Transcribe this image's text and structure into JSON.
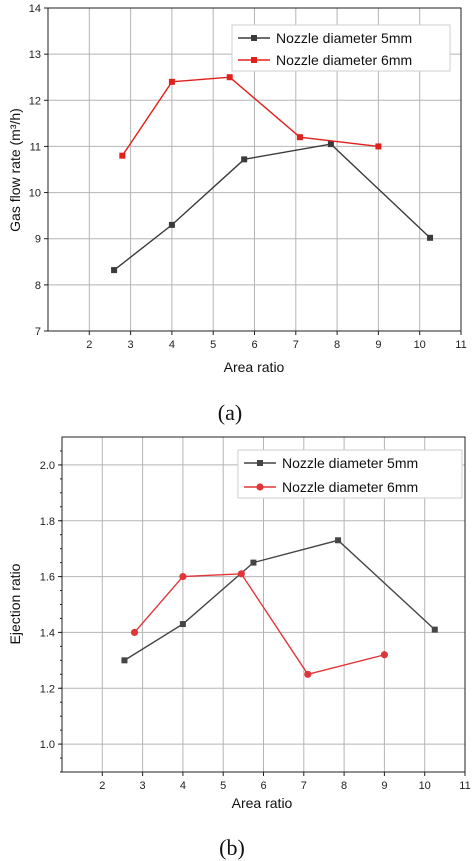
{
  "chart_data": [
    {
      "type": "line",
      "panel_label": "(a)",
      "xlabel": "Area ratio",
      "ylabel": "Gas flow rate (m³/h)",
      "xlim": [
        1,
        11
      ],
      "ylim": [
        7,
        14
      ],
      "xticks": [
        "2",
        "3",
        "4",
        "5",
        "6",
        "7",
        "8",
        "9",
        "10",
        "11"
      ],
      "yticks": [
        "7",
        "8",
        "9",
        "10",
        "11",
        "12",
        "13",
        "14"
      ],
      "grid": true,
      "legend_position": "top-right",
      "series": [
        {
          "name": "Nozzle diameter 5mm",
          "color": "#3a3a3a",
          "marker": "square",
          "x": [
            2.6,
            4.0,
            5.75,
            7.85,
            10.25
          ],
          "y": [
            8.32,
            9.3,
            10.72,
            11.05,
            9.02
          ]
        },
        {
          "name": "Nozzle diameter 6mm",
          "color": "#e0201b",
          "marker": "square",
          "x": [
            2.8,
            4.0,
            5.4,
            7.1,
            9.0
          ],
          "y": [
            10.8,
            12.4,
            12.5,
            11.2,
            11.0
          ]
        }
      ]
    },
    {
      "type": "line",
      "panel_label": "(b)",
      "xlabel": "Area ratio",
      "ylabel": "Ejection ratio",
      "xlim": [
        1,
        11
      ],
      "ylim": [
        0.9,
        2.1
      ],
      "xticks": [
        "2",
        "3",
        "4",
        "5",
        "6",
        "7",
        "8",
        "9",
        "10",
        "11"
      ],
      "yticks": [
        "1.0",
        "1.2",
        "1.4",
        "1.6",
        "1.8",
        "2.0"
      ],
      "grid": true,
      "legend_position": "top-right",
      "series": [
        {
          "name": "Nozzle diameter 5mm",
          "color": "#454545",
          "marker": "square",
          "x": [
            2.55,
            4.0,
            5.75,
            7.85,
            10.25
          ],
          "y": [
            1.3,
            1.43,
            1.65,
            1.73,
            1.41
          ]
        },
        {
          "name": "Nozzle diameter 6mm",
          "color": "#e0363a",
          "marker": "circle",
          "x": [
            2.8,
            4.0,
            5.45,
            7.1,
            9.0
          ],
          "y": [
            1.4,
            1.6,
            1.61,
            1.25,
            1.32
          ]
        }
      ]
    }
  ]
}
